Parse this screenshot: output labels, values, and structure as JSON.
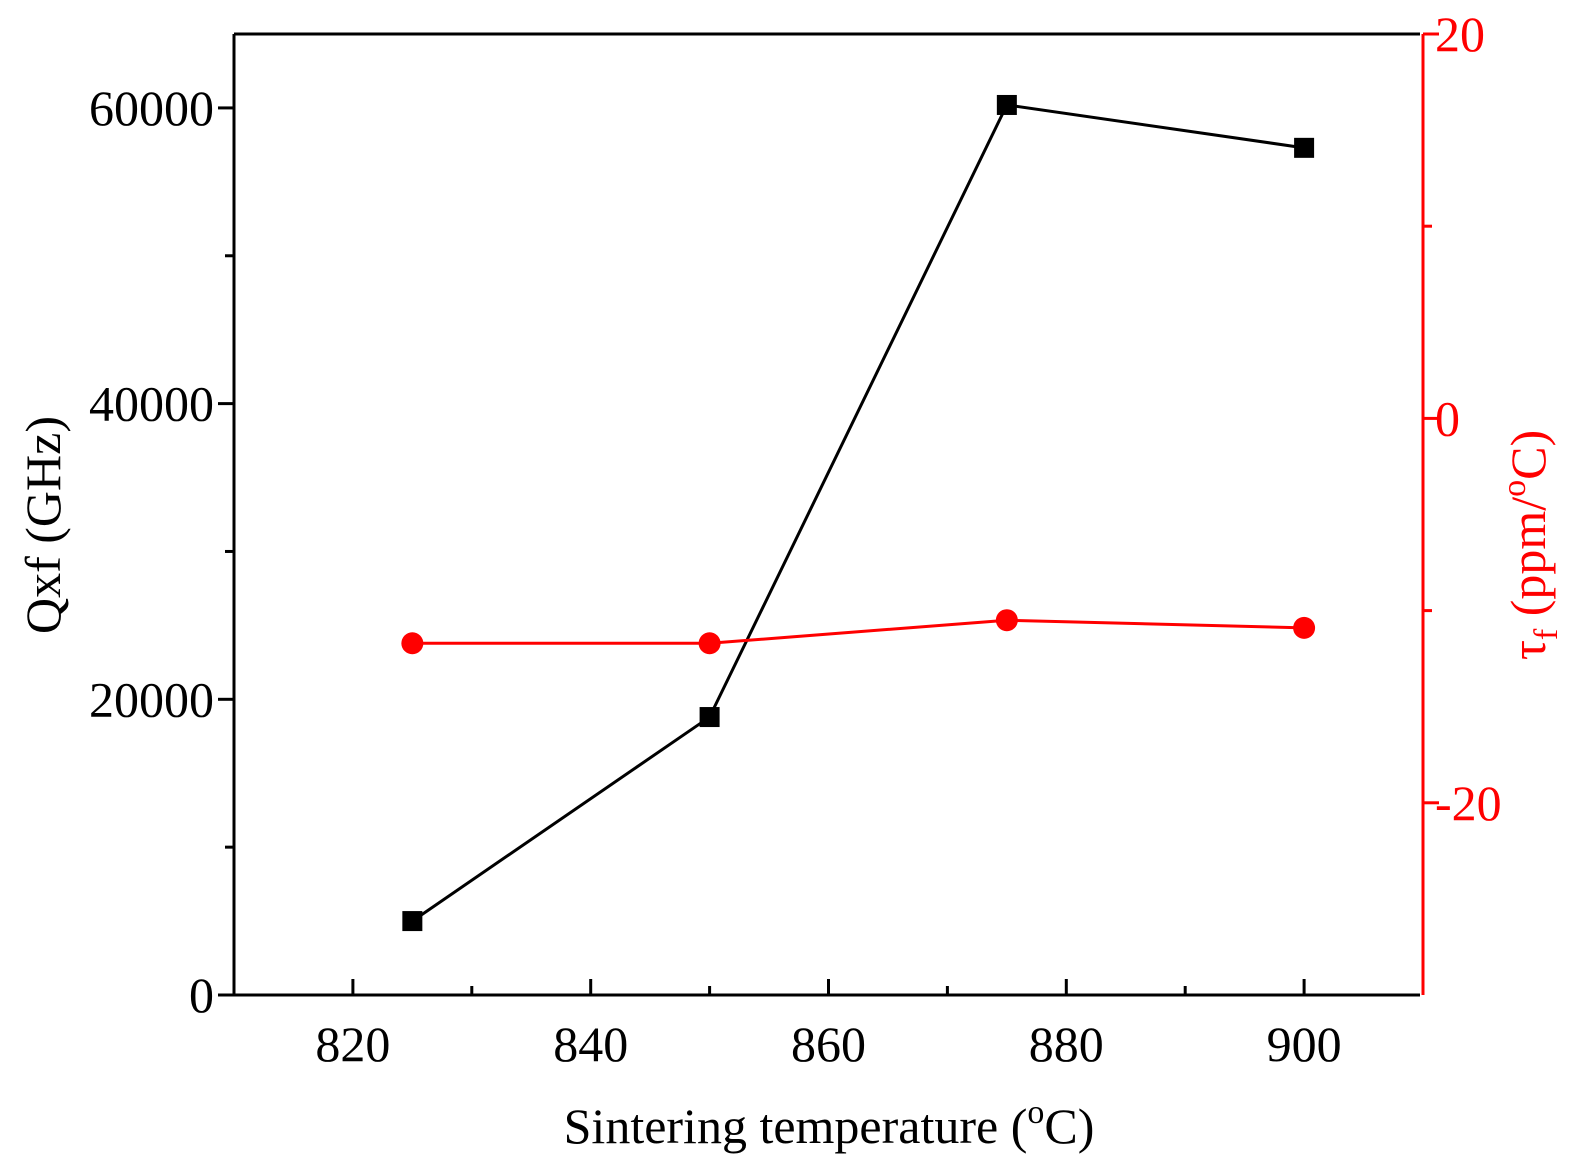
{
  "chart_data": {
    "type": "line",
    "x": [
      825,
      850,
      875,
      900
    ],
    "xlabel_main": "Sintering temperature (",
    "xlabel_sup": "o",
    "xlabel_end": "C)",
    "xlim": [
      810,
      910
    ],
    "x_major_ticks": [
      820,
      840,
      860,
      880,
      900
    ],
    "x_minor_ticks": [
      830,
      850,
      870,
      890
    ],
    "left_axis": {
      "label": "Qxf (GHz)",
      "ylim": [
        0,
        65000
      ],
      "major_ticks": [
        0,
        20000,
        40000,
        60000
      ],
      "minor_ticks": [
        10000,
        30000,
        50000
      ],
      "color": "#000000"
    },
    "right_axis": {
      "label_symbol": "τ",
      "label_sub": "f",
      "label_rest": " (ppm/",
      "label_sup": "o",
      "label_end": "C)",
      "ylim": [
        -30,
        20
      ],
      "major_ticks": [
        -20,
        0,
        20
      ],
      "minor_ticks": [
        -10,
        10
      ],
      "color": "#ff0000"
    },
    "series": [
      {
        "name": "Qxf",
        "axis": "left",
        "marker": "square",
        "color": "#000000",
        "values": [
          5000,
          18800,
          60200,
          57300
        ]
      },
      {
        "name": "tau_f",
        "axis": "right",
        "marker": "circle",
        "color": "#ff0000",
        "values": [
          -11.7,
          -11.7,
          -10.5,
          -10.9
        ]
      }
    ],
    "grid": false
  }
}
